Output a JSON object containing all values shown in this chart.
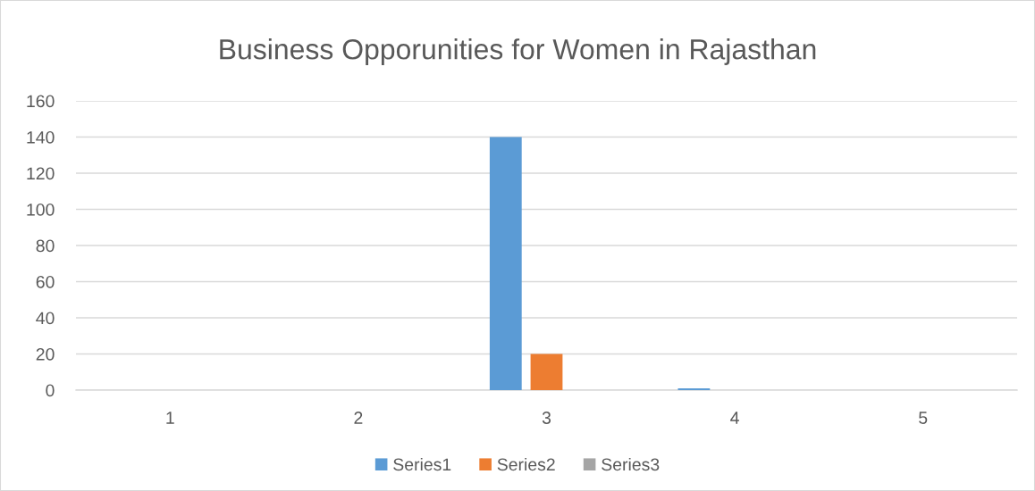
{
  "chart_data": {
    "type": "bar",
    "title": "Business Opporunities for Women in Rajasthan",
    "categories": [
      "1",
      "2",
      "3",
      "4",
      "5"
    ],
    "series": [
      {
        "name": "Series1",
        "color": "#5b9bd5",
        "values": [
          0,
          0,
          140,
          1,
          0
        ]
      },
      {
        "name": "Series2",
        "color": "#ed7d31",
        "values": [
          0,
          0,
          20,
          0,
          0
        ]
      },
      {
        "name": "Series3",
        "color": "#a5a5a5",
        "values": [
          0,
          0,
          0,
          0,
          0
        ]
      }
    ],
    "ylim": [
      0,
      160
    ],
    "yticks": [
      0,
      20,
      40,
      60,
      80,
      100,
      120,
      140,
      160
    ],
    "grid": "y",
    "legend": "bottom"
  }
}
